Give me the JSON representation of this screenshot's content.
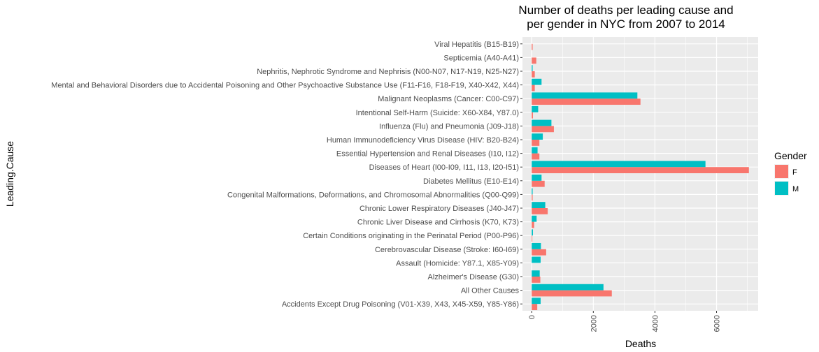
{
  "chart_data": {
    "type": "bar",
    "orientation": "horizontal",
    "title_lines": [
      "Number of deaths per leading cause and",
      "per gender in NYC from 2007 to 2014"
    ],
    "xlabel": "Deaths",
    "ylabel": "Leading.Cause",
    "xlim": [
      -300,
      7350
    ],
    "xticks": [
      "0",
      "2000",
      "4000",
      "6000"
    ],
    "categories": [
      "Viral Hepatitis (B15-B19)",
      "Septicemia (A40-A41)",
      "Nephritis, Nephrotic Syndrome and Nephrisis (N00-N07, N17-N19, N25-N27)",
      "Mental and Behavioral Disorders due to Accidental Poisoning and Other Psychoactive Substance Use (F11-F16, F18-F19, X40-X42, X44)",
      "Malignant Neoplasms (Cancer: C00-C97)",
      "Intentional Self-Harm (Suicide: X60-X84, Y87.0)",
      "Influenza (Flu) and Pneumonia (J09-J18)",
      "Human Immunodeficiency Virus Disease (HIV: B20-B24)",
      "Essential Hypertension and Renal Diseases (I10, I12)",
      "Diseases of Heart (I00-I09, I11, I13, I20-I51)",
      "Diabetes Mellitus (E10-E14)",
      "Congenital Malformations, Deformations, and Chromosomal Abnormalities (Q00-Q99)",
      "Chronic Lower Respiratory Diseases (J40-J47)",
      "Chronic Liver Disease and Cirrhosis (K70, K73)",
      "Certain Conditions originating in the Perinatal Period (P00-P96)",
      "Cerebrovascular Disease (Stroke: I60-I69)",
      "Assault (Homicide: Y87.1, X85-Y09)",
      "Alzheimer's Disease (G30)",
      "All Other Causes",
      "Accidents Except Drug Poisoning (V01-X39, X43, X45-X59, Y85-Y86)"
    ],
    "series": [
      {
        "name": "F",
        "color": "#F8766D",
        "values": [
          30,
          150,
          100,
          100,
          3530,
          40,
          720,
          250,
          250,
          7050,
          420,
          30,
          520,
          80,
          20,
          470,
          0,
          280,
          2600,
          180
        ]
      },
      {
        "name": "M",
        "color": "#00BFC4",
        "values": [
          0,
          0,
          30,
          320,
          3430,
          210,
          640,
          360,
          190,
          5640,
          320,
          30,
          440,
          160,
          40,
          300,
          290,
          260,
          2330,
          290
        ]
      }
    ],
    "legend": {
      "title": "Gender",
      "position": "right"
    },
    "grid": true,
    "panel_background": "#EBEBEB"
  }
}
